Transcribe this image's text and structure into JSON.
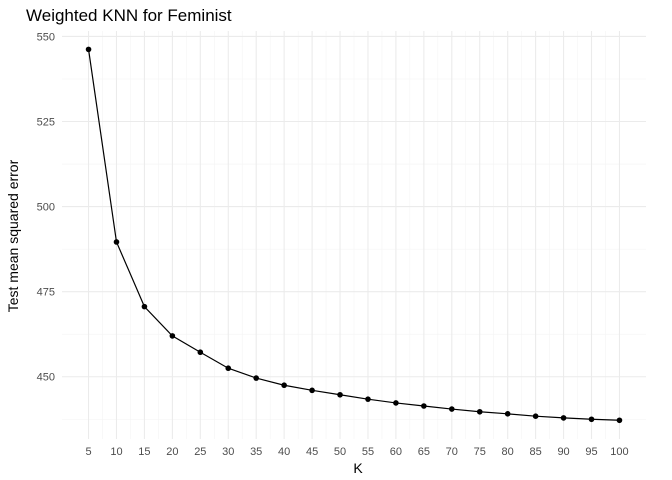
{
  "chart_data": {
    "type": "line",
    "title": "Weighted KNN for Feminist",
    "xlabel": "K",
    "ylabel": "Test mean squared error",
    "x": [
      5,
      10,
      15,
      20,
      25,
      30,
      35,
      40,
      45,
      50,
      55,
      60,
      65,
      70,
      75,
      80,
      85,
      90,
      95,
      100
    ],
    "series": [
      {
        "values": [
          546.2,
          489.6,
          470.6,
          462.0,
          457.2,
          452.5,
          449.6,
          447.5,
          446.0,
          444.7,
          443.4,
          442.3,
          441.4,
          440.5,
          439.7,
          439.1,
          438.4,
          437.9,
          437.5,
          437.2
        ]
      }
    ],
    "x_ticks": [
      5,
      10,
      15,
      20,
      25,
      30,
      35,
      40,
      45,
      50,
      55,
      60,
      65,
      70,
      75,
      80,
      85,
      90,
      95,
      100
    ],
    "y_ticks": [
      450,
      475,
      500,
      525,
      550
    ],
    "xlim": [
      0.25,
      104.75
    ],
    "ylim": [
      431.7,
      551.6
    ],
    "grid": true,
    "line_color": "#000000",
    "point_color": "#000000",
    "grid_color": "#ebebeb"
  }
}
